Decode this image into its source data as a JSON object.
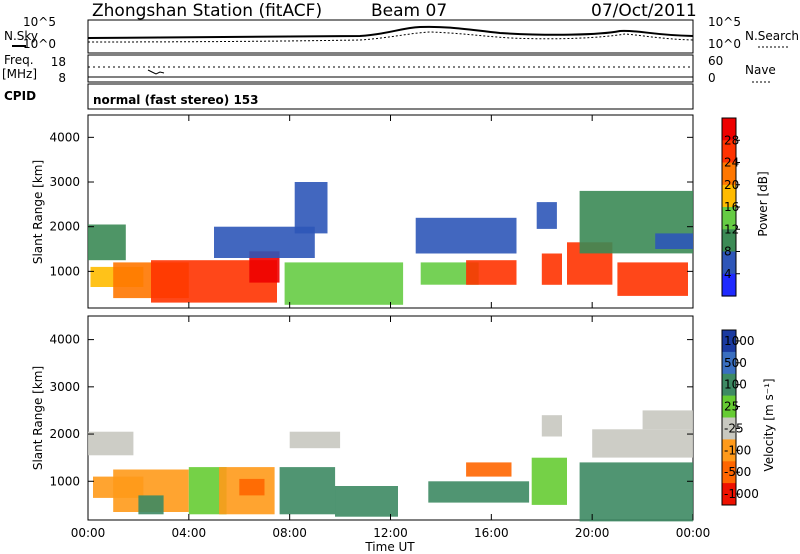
{
  "header": {
    "station": "Zhongshan Station (fitACF)",
    "beam": "Beam 07",
    "date": "07/Oct/2011"
  },
  "side_labels": {
    "nsky": "N.Sky",
    "freq": "Freq.",
    "mhz": "[MHz]",
    "cpid": "CPID",
    "nsearch": "N.Search",
    "nave": "Nave",
    "noise_tick_hi": "10^5",
    "noise_tick_lo": "10^0",
    "freq_tick_hi": "18",
    "freq_tick_lo": "8",
    "nave_tick_hi": "60",
    "nave_tick_lo": "0"
  },
  "cpid_text": "normal (fast stereo) 153",
  "chart_data": [
    {
      "type": "heatmap",
      "title": "",
      "quantity": "Power",
      "ylabel": "Slant Range [km]",
      "xlabel": "",
      "ylim": [
        180,
        4500
      ],
      "yticks": [
        "1000",
        "2000",
        "3000",
        "4000"
      ],
      "colorbar_label": "Power [dB]",
      "colorbar_ticks": [
        "4",
        "8",
        "12",
        "16",
        "20",
        "24",
        "28"
      ],
      "colors": [
        "#1f2aff",
        "#2e56b8",
        "#3b8a55",
        "#66cc44",
        "#ffbb00",
        "#ff7700",
        "#ff3300",
        "#ee0000"
      ],
      "blocks": [
        {
          "t0": 0.0,
          "t1": 1.5,
          "r0": 1250,
          "r1": 2050,
          "c": 2
        },
        {
          "t0": 0.1,
          "t1": 2.2,
          "r0": 650,
          "r1": 1100,
          "c": 4
        },
        {
          "t0": 1.0,
          "t1": 4.0,
          "r0": 400,
          "r1": 1200,
          "c": 5
        },
        {
          "t0": 2.5,
          "t1": 7.5,
          "r0": 300,
          "r1": 1250,
          "c": 6
        },
        {
          "t0": 6.4,
          "t1": 7.6,
          "r0": 750,
          "r1": 1450,
          "c": 7
        },
        {
          "t0": 5.0,
          "t1": 9.0,
          "r0": 1300,
          "r1": 2000,
          "c": 1
        },
        {
          "t0": 7.8,
          "t1": 12.5,
          "r0": 250,
          "r1": 1200,
          "c": 3
        },
        {
          "t0": 8.2,
          "t1": 9.5,
          "r0": 1850,
          "r1": 3000,
          "c": 1
        },
        {
          "t0": 13.2,
          "t1": 15.5,
          "r0": 700,
          "r1": 1200,
          "c": 3
        },
        {
          "t0": 15.0,
          "t1": 17.0,
          "r0": 700,
          "r1": 1250,
          "c": 6
        },
        {
          "t0": 13.0,
          "t1": 17.0,
          "r0": 1400,
          "r1": 2200,
          "c": 1
        },
        {
          "t0": 18.0,
          "t1": 18.8,
          "r0": 700,
          "r1": 1400,
          "c": 6
        },
        {
          "t0": 17.8,
          "t1": 18.6,
          "r0": 1950,
          "r1": 2550,
          "c": 1
        },
        {
          "t0": 19.0,
          "t1": 20.8,
          "r0": 700,
          "r1": 1650,
          "c": 6
        },
        {
          "t0": 21.0,
          "t1": 23.8,
          "r0": 450,
          "r1": 1200,
          "c": 6
        },
        {
          "t0": 19.5,
          "t1": 24.0,
          "r0": 1400,
          "r1": 2800,
          "c": 2
        },
        {
          "t0": 22.5,
          "t1": 24.0,
          "r0": 1500,
          "r1": 1850,
          "c": 1
        }
      ]
    },
    {
      "type": "heatmap",
      "title": "",
      "quantity": "Velocity",
      "ylabel": "Slant Range [km]",
      "xlabel": "Time UT",
      "ylim": [
        180,
        4500
      ],
      "yticks": [
        "1000",
        "2000",
        "3000",
        "4000"
      ],
      "xticks": [
        "00:00",
        "04:00",
        "08:00",
        "12:00",
        "16:00",
        "20:00",
        "00:00"
      ],
      "colorbar_label": "Velocity [m s⁻¹]",
      "colorbar_ticks": [
        "1000",
        "500",
        "100",
        "25",
        "-25",
        "-100",
        "-500",
        "-1000"
      ],
      "colors": [
        "#1a3aa0",
        "#3a6fc0",
        "#3d8a63",
        "#66cc33",
        "#c8c8c0",
        "#ff9a1a",
        "#ff6600",
        "#ee1100"
      ],
      "blocks": [
        {
          "t0": 0.0,
          "t1": 1.8,
          "r0": 1550,
          "r1": 2050,
          "c": 4
        },
        {
          "t0": 0.2,
          "t1": 2.2,
          "r0": 650,
          "r1": 1100,
          "c": 5
        },
        {
          "t0": 1.0,
          "t1": 4.0,
          "r0": 350,
          "r1": 1250,
          "c": 5
        },
        {
          "t0": 2.0,
          "t1": 3.0,
          "r0": 300,
          "r1": 700,
          "c": 2
        },
        {
          "t0": 4.0,
          "t1": 5.5,
          "r0": 300,
          "r1": 1300,
          "c": 3
        },
        {
          "t0": 5.2,
          "t1": 7.4,
          "r0": 300,
          "r1": 1300,
          "c": 5
        },
        {
          "t0": 6.0,
          "t1": 7.0,
          "r0": 700,
          "r1": 1050,
          "c": 6
        },
        {
          "t0": 7.6,
          "t1": 9.8,
          "r0": 300,
          "r1": 1300,
          "c": 2
        },
        {
          "t0": 8.0,
          "t1": 10.0,
          "r0": 1700,
          "r1": 2050,
          "c": 4
        },
        {
          "t0": 9.8,
          "t1": 12.3,
          "r0": 250,
          "r1": 900,
          "c": 2
        },
        {
          "t0": 13.5,
          "t1": 17.5,
          "r0": 550,
          "r1": 1000,
          "c": 2
        },
        {
          "t0": 15.0,
          "t1": 16.8,
          "r0": 1100,
          "r1": 1400,
          "c": 6
        },
        {
          "t0": 17.6,
          "t1": 19.0,
          "r0": 500,
          "r1": 1500,
          "c": 3
        },
        {
          "t0": 18.0,
          "t1": 18.8,
          "r0": 1950,
          "r1": 2400,
          "c": 4
        },
        {
          "t0": 19.5,
          "t1": 24.0,
          "r0": 150,
          "r1": 1400,
          "c": 2
        },
        {
          "t0": 20.0,
          "t1": 24.0,
          "r0": 1500,
          "r1": 2100,
          "c": 4
        },
        {
          "t0": 22.0,
          "t1": 24.0,
          "r0": 2100,
          "r1": 2500,
          "c": 4
        }
      ]
    }
  ]
}
